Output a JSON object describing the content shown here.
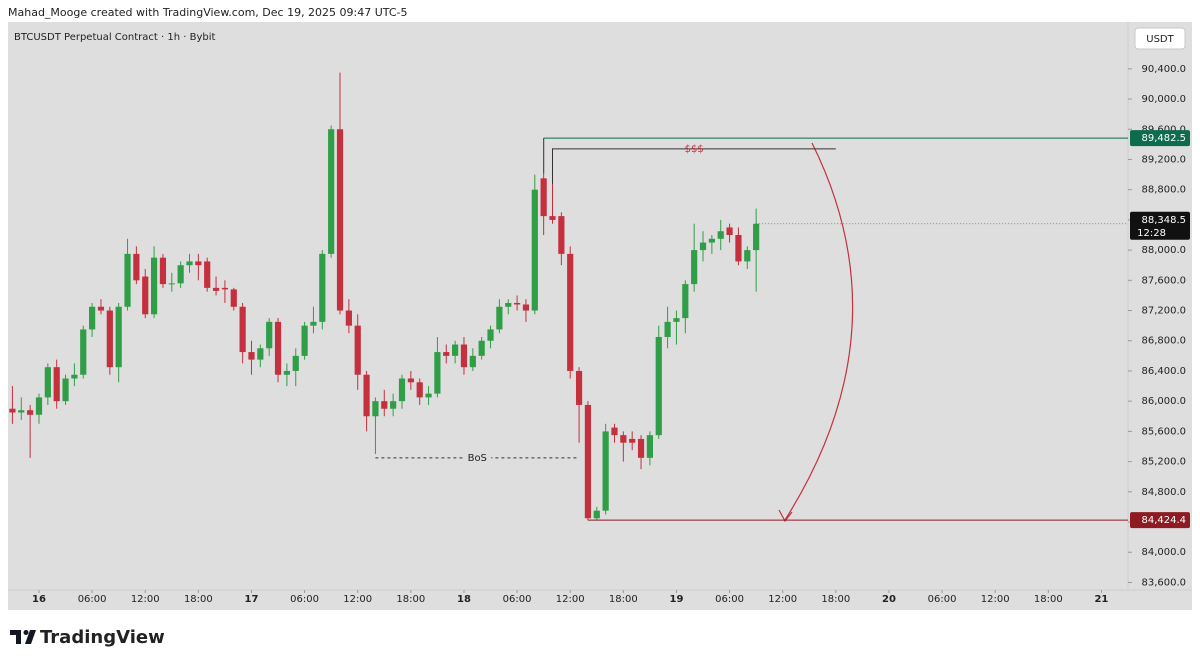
{
  "chart_data": {
    "type": "candlestick",
    "header": "Mahad_Mooge created with TradingView.com, Dec 19, 2025 09:47 UTC-5",
    "title": "BTCUSDT Perpetual Contract · 1h · Bybit",
    "currency": "USDT",
    "brand": "TradingView",
    "up_color": "#2f9e47",
    "down_color": "#c4303e",
    "x": [
      -3,
      -2,
      -1,
      0,
      1,
      2,
      3,
      4,
      5,
      6,
      7,
      8,
      9,
      10,
      11,
      12,
      13,
      14,
      15,
      16,
      17,
      18,
      19,
      20,
      21,
      22,
      23,
      24,
      25,
      26,
      27,
      28,
      29,
      30,
      31,
      32,
      33,
      34,
      35,
      36,
      37,
      38,
      39,
      40,
      41,
      42,
      43,
      44,
      45,
      46,
      47,
      48,
      49,
      50,
      51,
      52,
      53,
      54,
      55,
      56,
      57,
      58,
      59,
      60,
      61,
      62,
      63,
      64,
      65,
      66,
      67,
      68,
      69,
      70,
      71,
      72,
      73,
      74,
      75,
      76,
      77,
      78,
      79,
      80,
      81
    ],
    "open": [
      85900,
      85850,
      85880,
      85820,
      86050,
      86450,
      86000,
      86300,
      86350,
      86950,
      87250,
      87200,
      86450,
      87250,
      87950,
      87650,
      87150,
      87900,
      87550,
      87560,
      87800,
      87850,
      87850,
      87500,
      87500,
      87480,
      87250,
      86650,
      86550,
      86700,
      87050,
      86350,
      86400,
      86600,
      87000,
      87050,
      87950,
      89600,
      87200,
      87000,
      86350,
      85800,
      86000,
      85900,
      86000,
      86300,
      86250,
      86050,
      86100,
      86650,
      86600,
      86750,
      86450,
      86600,
      86800,
      86950,
      87250,
      87300,
      87280,
      87200,
      88950,
      88450,
      88450,
      87950,
      86400,
      85950,
      84450,
      84550,
      85650,
      85550,
      85500,
      85500,
      85250,
      85550,
      86850,
      87050,
      87100,
      87550,
      88000,
      88100,
      88150,
      88300,
      88200,
      87850,
      88000
    ],
    "high": [
      86200,
      86050,
      85950,
      86100,
      86500,
      86550,
      86350,
      86500,
      87000,
      87300,
      87350,
      87250,
      87300,
      88150,
      88050,
      87750,
      88050,
      87950,
      87700,
      87850,
      87950,
      87950,
      87900,
      87650,
      87600,
      87500,
      87300,
      86800,
      86750,
      87100,
      87100,
      86500,
      86700,
      87050,
      87250,
      88000,
      89650,
      90350,
      87350,
      87150,
      86400,
      86050,
      86150,
      86100,
      86350,
      86400,
      86300,
      86200,
      86850,
      86750,
      86800,
      86850,
      86700,
      86850,
      87000,
      87350,
      87350,
      87400,
      87350,
      89000,
      89482.5,
      89350,
      88500,
      88050,
      86450,
      86000,
      84600,
      85700,
      85700,
      85600,
      85600,
      85550,
      85600,
      87000,
      87250,
      87200,
      87600,
      88350,
      88250,
      88200,
      88400,
      88350,
      88300,
      88050,
      88550
    ],
    "low": [
      85700,
      85750,
      85250,
      85700,
      85950,
      85900,
      85950,
      86200,
      86300,
      86850,
      87150,
      86350,
      86250,
      87200,
      87550,
      87100,
      87100,
      87500,
      87450,
      87500,
      87700,
      87600,
      87450,
      87400,
      87300,
      87200,
      86500,
      86350,
      86450,
      86600,
      86250,
      86200,
      86200,
      86550,
      86900,
      86950,
      87900,
      87150,
      86900,
      86150,
      85600,
      85300,
      85800,
      85800,
      85900,
      86150,
      85950,
      85950,
      86050,
      86500,
      86500,
      86350,
      86400,
      86550,
      86700,
      86900,
      87150,
      87200,
      87050,
      87150,
      88200,
      88350,
      87800,
      86300,
      85450,
      84424.4,
      84424.4,
      84500,
      85450,
      85200,
      85350,
      85100,
      85150,
      85500,
      86700,
      86750,
      86900,
      87450,
      87850,
      87950,
      88000,
      88100,
      87800,
      87750,
      87450
    ],
    "close": [
      85850,
      85880,
      85820,
      86050,
      86450,
      86000,
      86300,
      86350,
      86950,
      87250,
      87200,
      86450,
      87250,
      87950,
      87600,
      87150,
      87900,
      87550,
      87560,
      87800,
      87850,
      87800,
      87500,
      87460,
      87480,
      87250,
      86650,
      86550,
      86700,
      87050,
      86350,
      86400,
      86600,
      87000,
      87050,
      87950,
      89600,
      87200,
      87000,
      86350,
      85800,
      86000,
      85900,
      86000,
      86300,
      86250,
      86050,
      86100,
      86650,
      86600,
      86750,
      86450,
      86600,
      86800,
      86950,
      87250,
      87300,
      87280,
      87200,
      88800,
      88450,
      88400,
      87950,
      86400,
      85950,
      84450,
      84550,
      85600,
      85550,
      85450,
      85450,
      85250,
      85550,
      86850,
      87050,
      87100,
      87550,
      88000,
      88100,
      88150,
      88250,
      88200,
      87850,
      88000,
      88348.5
    ],
    "xlim": [
      -3.5,
      123
    ],
    "xticks": [
      {
        "value": 0,
        "label": "16"
      },
      {
        "value": 6,
        "label": "06:00"
      },
      {
        "value": 12,
        "label": "12:00"
      },
      {
        "value": 18,
        "label": "18:00"
      },
      {
        "value": 24,
        "label": "17"
      },
      {
        "value": 30,
        "label": "06:00"
      },
      {
        "value": 36,
        "label": "12:00"
      },
      {
        "value": 42,
        "label": "18:00"
      },
      {
        "value": 48,
        "label": "18"
      },
      {
        "value": 54,
        "label": "06:00"
      },
      {
        "value": 60,
        "label": "12:00"
      },
      {
        "value": 66,
        "label": "18:00"
      },
      {
        "value": 72,
        "label": "19"
      },
      {
        "value": 78,
        "label": "06:00"
      },
      {
        "value": 84,
        "label": "12:00"
      },
      {
        "value": 90,
        "label": "18:00"
      },
      {
        "value": 96,
        "label": "20"
      },
      {
        "value": 102,
        "label": "06:00"
      },
      {
        "value": 108,
        "label": "12:00"
      },
      {
        "value": 114,
        "label": "18:00"
      },
      {
        "value": 120,
        "label": "21"
      }
    ],
    "ylim": [
      83500,
      91020
    ],
    "yticks": [
      {
        "value": 83600,
        "label": "83,600.0"
      },
      {
        "value": 84000,
        "label": "84,000.0"
      },
      {
        "value": 84400,
        "label": "84,400.0"
      },
      {
        "value": 84800,
        "label": "84,800.0"
      },
      {
        "value": 85200,
        "label": "85,200.0"
      },
      {
        "value": 85600,
        "label": "85,600.0"
      },
      {
        "value": 86000,
        "label": "86,000.0"
      },
      {
        "value": 86400,
        "label": "86,400.0"
      },
      {
        "value": 86800,
        "label": "86,800.0"
      },
      {
        "value": 87200,
        "label": "87,200.0"
      },
      {
        "value": 87600,
        "label": "87,600.0"
      },
      {
        "value": 88000,
        "label": "88,000.0"
      },
      {
        "value": 88400,
        "label": "88,400.0"
      },
      {
        "value": 88800,
        "label": "88,800.0"
      },
      {
        "value": 89200,
        "label": "89,200.0"
      },
      {
        "value": 89600,
        "label": "89,600.0"
      },
      {
        "value": 90000,
        "label": "90,000.0"
      },
      {
        "value": 90400,
        "label": "90,400.0"
      }
    ],
    "levels": [
      {
        "value": 89482.5,
        "label": "89,482.5",
        "color": "#0d6b4e"
      },
      {
        "value": 84424.4,
        "label": "84,424.4",
        "color": "#8e1b22"
      }
    ],
    "liquidity": {
      "text": "$$$",
      "value": 89340
    },
    "bos": {
      "text": "BoS",
      "value": 85250
    },
    "last_price": {
      "value": 88348.5,
      "label": "88,348.5"
    },
    "countdown": "12:28"
  }
}
